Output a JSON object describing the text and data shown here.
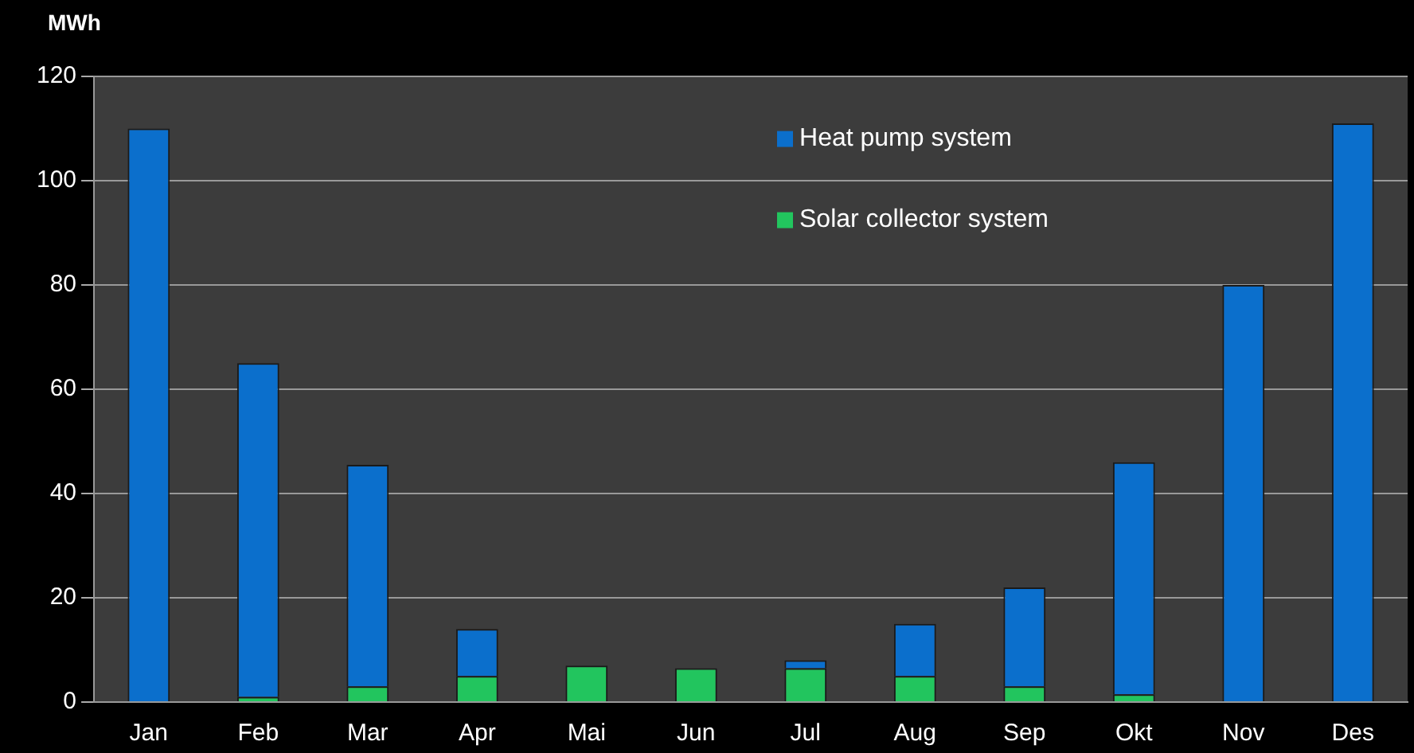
{
  "chart_data": {
    "type": "bar",
    "stacked": true,
    "ylabel": "MWh",
    "categories": [
      "Jan",
      "Feb",
      "Mar",
      "Apr",
      "Mai",
      "Jun",
      "Jul",
      "Aug",
      "Sep",
      "Okt",
      "Nov",
      "Des"
    ],
    "series": [
      {
        "name": "Solar collector system",
        "color": "#22c55e",
        "values": [
          0,
          1,
          3,
          5,
          7,
          6.5,
          6.5,
          5,
          3,
          1.5,
          0,
          0
        ]
      },
      {
        "name": "Heat pump system",
        "color": "#0b6fcc",
        "values": [
          110,
          64,
          42.5,
          9,
          0,
          0,
          1.5,
          10,
          19,
          44.5,
          80,
          111
        ]
      }
    ],
    "ylim": [
      0,
      120
    ],
    "yticks": [
      0,
      20,
      40,
      60,
      80,
      100,
      120
    ],
    "grid": "y",
    "legend": "top"
  }
}
